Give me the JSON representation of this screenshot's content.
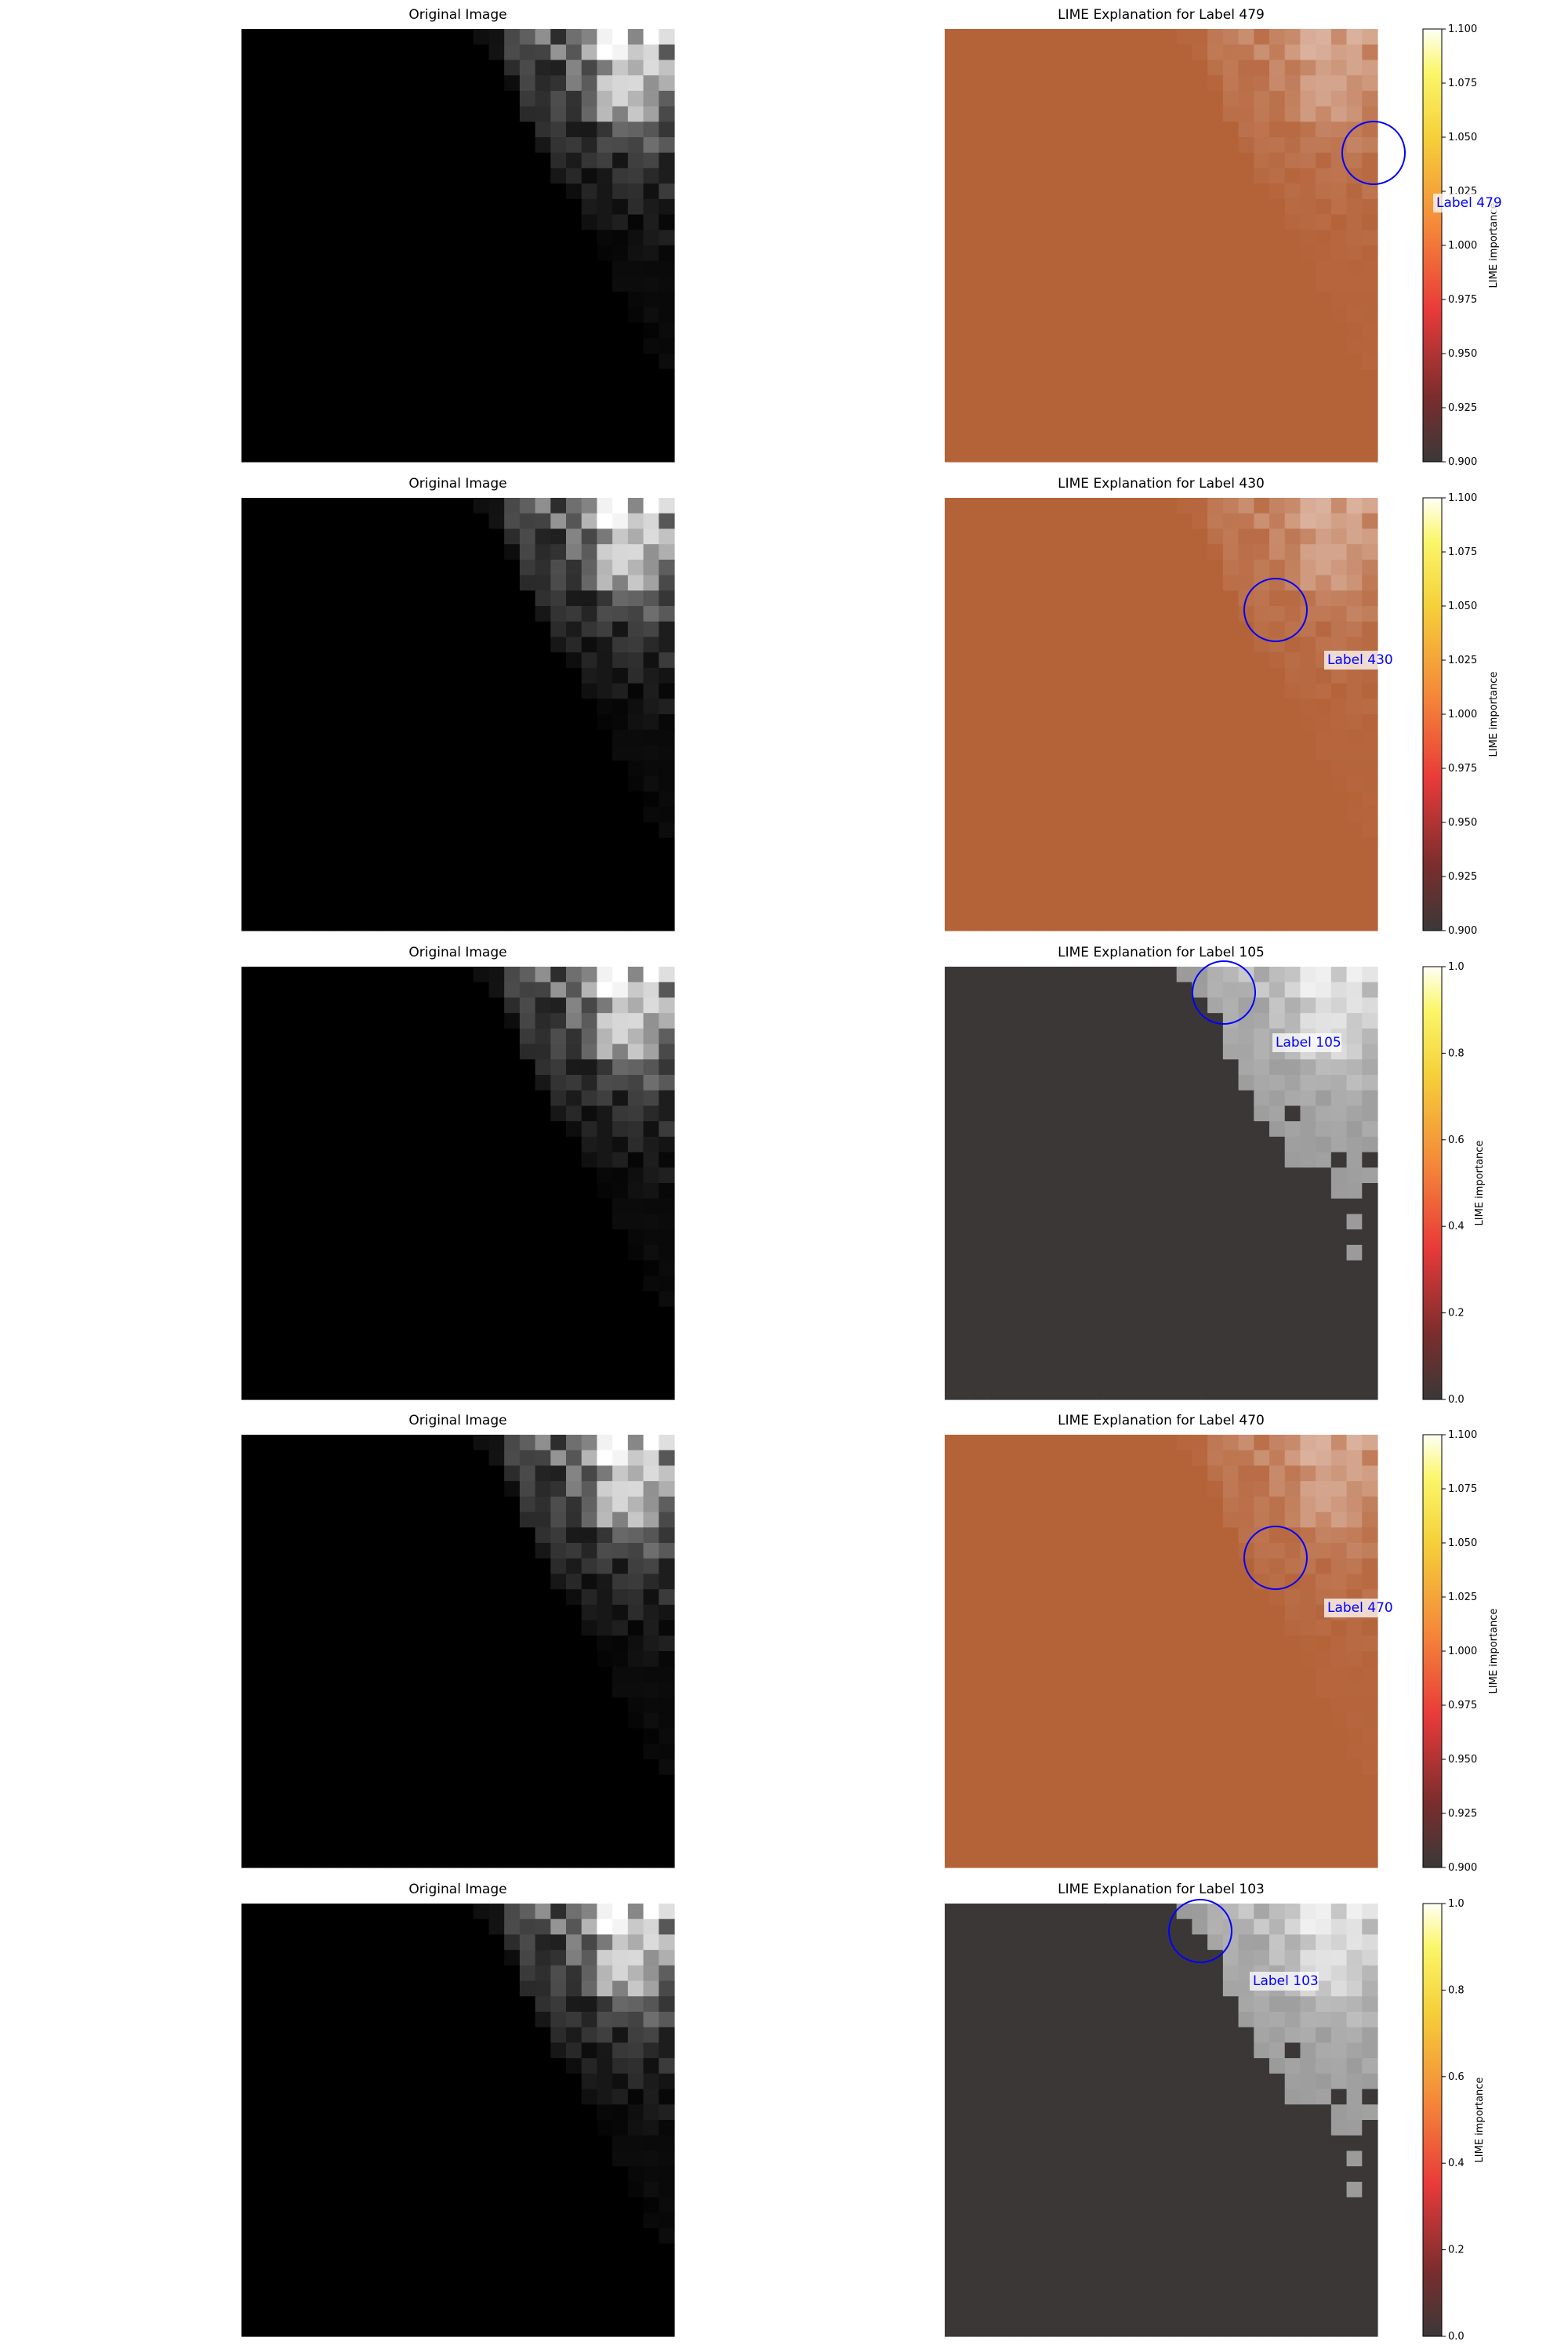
{
  "colors": {
    "annotation": "#0000ff",
    "colormap": "hot",
    "background": "#ffffff"
  },
  "chart_data": [
    {
      "type": "image",
      "title": "Original Image"
    },
    {
      "type": "heatmap",
      "title": "LIME Explanation for Label 479",
      "annotation": "Label 479",
      "colorbar": {
        "label": "LIME importance",
        "range": [
          0.9,
          1.1
        ],
        "ticks": [
          "0.900",
          "0.925",
          "0.950",
          "0.975",
          "1.000",
          "1.025",
          "1.050",
          "1.075",
          "1.100"
        ]
      },
      "mask_value": 1.0
    },
    {
      "type": "image",
      "title": "Original Image"
    },
    {
      "type": "heatmap",
      "title": "LIME Explanation for Label 430",
      "annotation": "Label 430",
      "colorbar": {
        "label": "LIME importance",
        "range": [
          0.9,
          1.1
        ],
        "ticks": [
          "0.900",
          "0.925",
          "0.950",
          "0.975",
          "1.000",
          "1.025",
          "1.050",
          "1.075",
          "1.100"
        ]
      },
      "mask_value": 1.0
    },
    {
      "type": "image",
      "title": "Original Image"
    },
    {
      "type": "heatmap",
      "title": "LIME Explanation for Label 105",
      "annotation": "Label 105",
      "colorbar": {
        "label": "LIME importance",
        "range": [
          0.0,
          1.0
        ],
        "ticks": [
          "0.0",
          "0.2",
          "0.4",
          "0.6",
          "0.8",
          "1.0"
        ]
      },
      "mask_value": 0.0
    },
    {
      "type": "image",
      "title": "Original Image"
    },
    {
      "type": "heatmap",
      "title": "LIME Explanation for Label 470",
      "annotation": "Label 470",
      "colorbar": {
        "label": "LIME importance",
        "range": [
          0.9,
          1.1
        ],
        "ticks": [
          "0.900",
          "0.925",
          "0.950",
          "0.975",
          "1.000",
          "1.025",
          "1.050",
          "1.075",
          "1.100"
        ]
      },
      "mask_value": 1.0
    },
    {
      "type": "image",
      "title": "Original Image"
    },
    {
      "type": "heatmap",
      "title": "LIME Explanation for Label 103",
      "annotation": "Label 103",
      "colorbar": {
        "label": "LIME importance",
        "range": [
          0.0,
          1.0
        ],
        "ticks": [
          "0.0",
          "0.2",
          "0.4",
          "0.6",
          "0.8",
          "1.0"
        ]
      },
      "mask_value": 0.0
    }
  ]
}
